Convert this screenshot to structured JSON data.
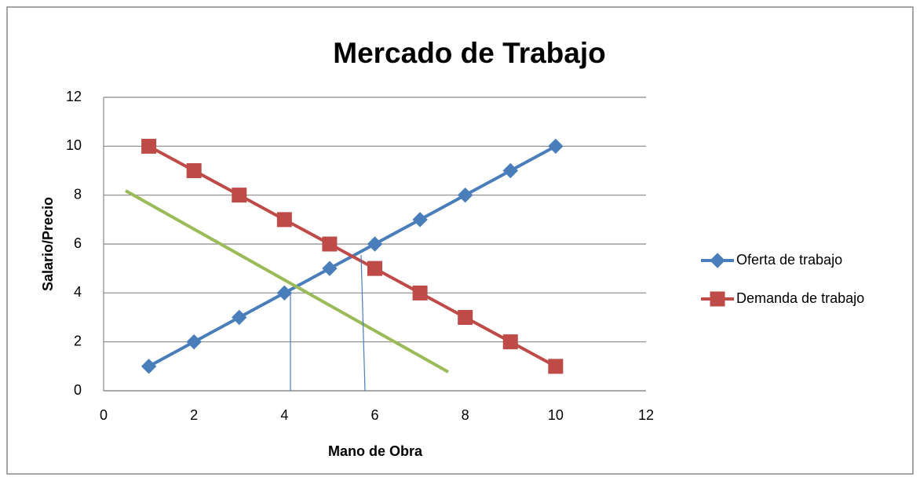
{
  "chart_data": {
    "type": "line",
    "title": "Mercado de Trabajo",
    "x_label": "Mano de Obra",
    "y_label": "Salario/Precio",
    "x": [
      1,
      2,
      3,
      4,
      5,
      6,
      7,
      8,
      9,
      10
    ],
    "series": [
      {
        "name": "Oferta de trabajo",
        "color": "#4a7ebb",
        "marker": "diamond",
        "values": [
          1,
          2,
          3,
          4,
          5,
          6,
          7,
          8,
          9,
          10
        ]
      },
      {
        "name": "Demanda de trabajo",
        "color": "#be4b48",
        "marker": "square",
        "values": [
          10,
          9,
          8,
          7,
          6,
          5,
          4,
          3,
          2,
          1
        ]
      }
    ],
    "xlim": [
      0,
      12
    ],
    "xticks": [
      0,
      2,
      4,
      6,
      8,
      10,
      12
    ],
    "ylim": [
      0,
      12
    ],
    "yticks": [
      0,
      2,
      4,
      6,
      8,
      10,
      12
    ],
    "grid": true,
    "legend": "right"
  }
}
